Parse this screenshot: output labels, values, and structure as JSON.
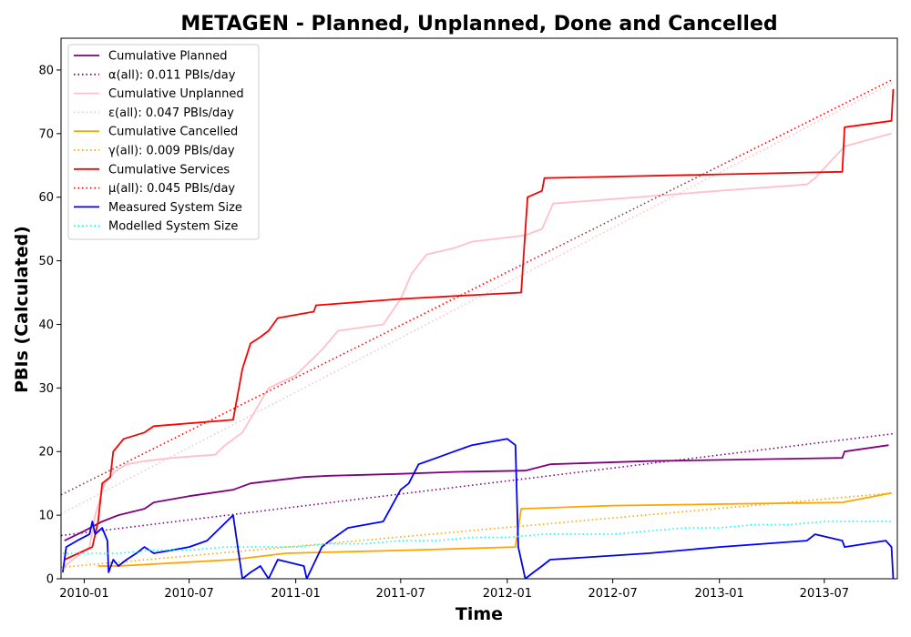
{
  "chart_data": {
    "type": "line",
    "title": "METAGEN - Planned, Unplanned, Done  and Cancelled",
    "xlabel": "Time",
    "ylabel": "PBIs (Calculated)",
    "xlim": [
      "2009-11-22",
      "2013-11-04"
    ],
    "ylim": [
      0,
      85
    ],
    "x_ticks": [
      {
        "date": "2010-01-01",
        "label": "2010-01"
      },
      {
        "date": "2010-07-01",
        "label": "2010-07"
      },
      {
        "date": "2011-01-01",
        "label": "2011-01"
      },
      {
        "date": "2011-07-01",
        "label": "2011-07"
      },
      {
        "date": "2012-01-01",
        "label": "2012-01"
      },
      {
        "date": "2012-07-01",
        "label": "2012-07"
      },
      {
        "date": "2013-01-01",
        "label": "2013-01"
      },
      {
        "date": "2013-07-01",
        "label": "2013-07"
      }
    ],
    "y_ticks": [
      0,
      10,
      20,
      30,
      40,
      50,
      60,
      70,
      80
    ],
    "legend_position": "top-left",
    "series": [
      {
        "name": "Cumulative Planned",
        "color": "#800080",
        "style": "solid",
        "x": [
          "2009-11-28",
          "2010-01-01",
          "2010-02-01",
          "2010-03-01",
          "2010-04-15",
          "2010-05-01",
          "2010-07-01",
          "2010-09-15",
          "2010-10-15",
          "2011-01-15",
          "2011-03-01",
          "2011-07-01",
          "2011-10-01",
          "2012-02-01",
          "2012-03-15",
          "2012-09-01",
          "2013-08-01",
          "2013-08-05",
          "2013-10-20"
        ],
        "y": [
          6,
          7.5,
          9,
          10,
          11,
          12,
          13,
          14,
          15,
          16,
          16.2,
          16.5,
          16.8,
          17,
          18,
          18.5,
          19,
          20,
          21
        ]
      },
      {
        "name": "α(all): 0.011 PBIs/day",
        "color": "#800080",
        "style": "dotted",
        "x": [
          "2009-11-22",
          "2013-10-27"
        ],
        "y": [
          6.8,
          22.8
        ]
      },
      {
        "name": "Cumulative Unplanned",
        "color": "#ffc0cb",
        "style": "solid",
        "x": [
          "2009-11-28",
          "2010-01-10",
          "2010-01-20",
          "2010-02-05",
          "2010-02-25",
          "2010-03-15",
          "2010-04-15",
          "2010-06-01",
          "2010-08-15",
          "2010-09-01",
          "2010-10-01",
          "2010-11-15",
          "2011-01-01",
          "2011-02-15",
          "2011-03-15",
          "2011-06-01",
          "2011-07-01",
          "2011-07-20",
          "2011-08-15",
          "2011-10-01",
          "2011-11-01",
          "2012-02-01",
          "2012-03-01",
          "2012-03-20",
          "2012-06-01",
          "2013-01-01",
          "2013-06-01",
          "2013-06-15",
          "2013-08-05",
          "2013-10-25"
        ],
        "y": [
          2,
          5,
          10,
          15,
          17,
          18,
          18.5,
          19,
          19.5,
          21,
          23,
          30,
          32,
          36,
          39,
          40,
          44,
          48,
          51,
          52,
          53,
          54,
          55,
          59,
          59.5,
          61,
          62,
          63,
          68,
          70
        ]
      },
      {
        "name": "ε(all): 0.047 PBIs/day",
        "color": "#ffc0cb",
        "style": "dotted",
        "x": [
          "2009-11-22",
          "2013-10-27"
        ],
        "y": [
          10.2,
          78.0
        ]
      },
      {
        "name": "Cumulative Cancelled",
        "color": "#ffa500",
        "style": "solid",
        "x": [
          "2010-01-25",
          "2010-02-15",
          "2010-03-01",
          "2010-09-15",
          "2010-12-15",
          "2011-07-15",
          "2012-01-15",
          "2012-01-25",
          "2012-07-01",
          "2013-08-01",
          "2013-10-25"
        ],
        "y": [
          2,
          2,
          2,
          3,
          4,
          4.5,
          5,
          11,
          11.5,
          12,
          13.5
        ]
      },
      {
        "name": "γ(all): 0.009 PBIs/day",
        "color": "#ffa500",
        "style": "dotted",
        "x": [
          "2009-11-22",
          "2013-10-27"
        ],
        "y": [
          1.8,
          13.5
        ]
      },
      {
        "name": "Cumulative Services",
        "color": "#ff0000",
        "style": "solid",
        "x": [
          "2009-11-28",
          "2010-01-15",
          "2010-01-25",
          "2010-02-01",
          "2010-02-15",
          "2010-02-20",
          "2010-03-10",
          "2010-04-15",
          "2010-05-01",
          "2010-09-15",
          "2010-10-01",
          "2010-10-15",
          "2010-11-01",
          "2010-11-15",
          "2010-12-01",
          "2011-02-01",
          "2011-02-05",
          "2011-07-01",
          "2012-01-25",
          "2012-02-05",
          "2012-03-01",
          "2012-03-05",
          "2013-08-01",
          "2013-08-05",
          "2013-10-25",
          "2013-10-28"
        ],
        "y": [
          3,
          5,
          9,
          15,
          16,
          20,
          22,
          23,
          24,
          25,
          33,
          37,
          38,
          39,
          41,
          42,
          43,
          44,
          45,
          60,
          61,
          63,
          64,
          71,
          72,
          77
        ]
      },
      {
        "name": "μ(all): 0.045 PBIs/day",
        "color": "#ff0000",
        "style": "dotted",
        "x": [
          "2009-11-22",
          "2013-10-27"
        ],
        "y": [
          13.2,
          78.5
        ]
      },
      {
        "name": "Measured System Size",
        "color": "#0000ff",
        "style": "solid",
        "x": [
          "2009-11-25",
          "2009-12-01",
          "2009-12-20",
          "2010-01-10",
          "2010-01-15",
          "2010-01-20",
          "2010-02-01",
          "2010-02-10",
          "2010-02-12",
          "2010-02-20",
          "2010-03-01",
          "2010-03-15",
          "2010-04-01",
          "2010-04-15",
          "2010-05-01",
          "2010-06-01",
          "2010-07-01",
          "2010-08-01",
          "2010-09-15",
          "2010-10-01",
          "2010-10-15",
          "2010-11-01",
          "2010-11-15",
          "2010-12-01",
          "2011-01-15",
          "2011-01-20",
          "2011-02-15",
          "2011-03-01",
          "2011-04-01",
          "2011-05-01",
          "2011-06-01",
          "2011-07-01",
          "2011-07-15",
          "2011-08-01",
          "2011-09-01",
          "2011-10-01",
          "2011-11-01",
          "2011-12-01",
          "2012-01-01",
          "2012-01-15",
          "2012-01-20",
          "2012-02-01",
          "2012-02-15",
          "2012-03-01",
          "2012-03-15",
          "2012-09-01",
          "2013-01-01",
          "2013-06-01",
          "2013-06-15",
          "2013-08-01",
          "2013-08-05",
          "2013-10-15",
          "2013-10-25",
          "2013-10-28"
        ],
        "y": [
          1,
          5,
          6,
          7,
          9,
          7,
          8,
          6,
          1,
          3,
          2,
          3,
          4,
          5,
          4,
          4.5,
          5,
          6,
          10,
          0,
          1,
          2,
          0,
          3,
          2,
          0,
          5,
          6,
          8,
          8.5,
          9,
          14,
          15,
          18,
          19,
          20,
          21,
          21.5,
          22,
          21,
          5,
          0,
          1,
          2,
          3,
          4,
          5,
          6,
          7,
          6,
          5,
          6,
          5,
          0
        ]
      },
      {
        "name": "Modelled System Size",
        "color": "#00ffff",
        "style": "dotted",
        "x": [
          "2009-11-25",
          "2010-01-01",
          "2010-03-01",
          "2010-05-01",
          "2010-07-01",
          "2010-09-01",
          "2010-11-01",
          "2011-01-01",
          "2011-03-01",
          "2011-05-01",
          "2011-07-01",
          "2011-09-01",
          "2011-11-01",
          "2012-01-01",
          "2012-03-01",
          "2012-05-01",
          "2012-07-01",
          "2012-09-01",
          "2012-11-01",
          "2013-01-01",
          "2013-03-01",
          "2013-05-01",
          "2013-07-01",
          "2013-09-01",
          "2013-10-25"
        ],
        "y": [
          4,
          4,
          4,
          4.5,
          4.5,
          5,
          5,
          5,
          5.5,
          5.5,
          6,
          6,
          6.5,
          6.5,
          7,
          7,
          7,
          7.5,
          8,
          8,
          8.5,
          8.5,
          9,
          9,
          9
        ]
      }
    ]
  }
}
